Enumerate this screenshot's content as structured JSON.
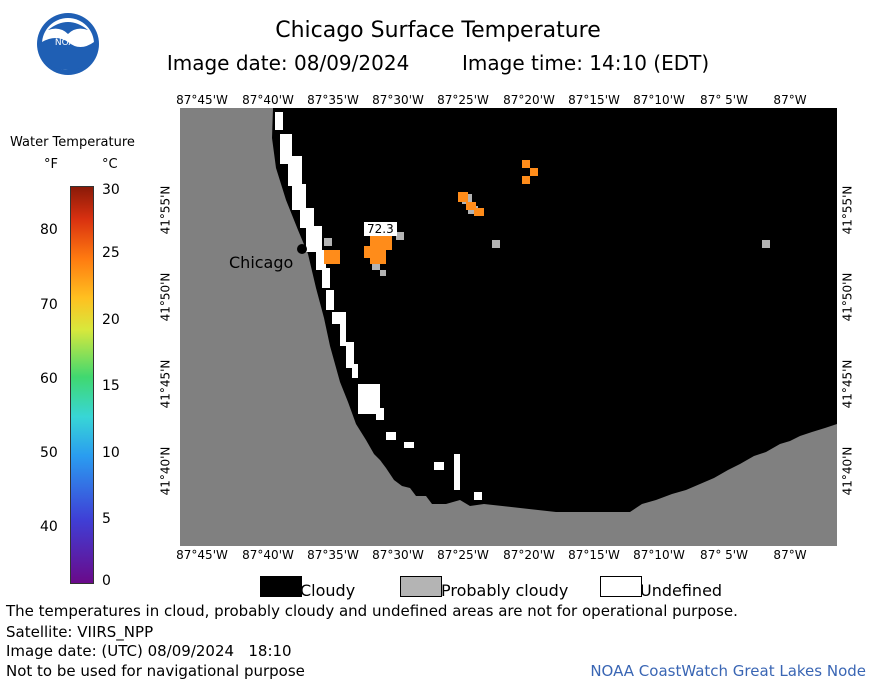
{
  "header": {
    "title": "Chicago Surface Temperature",
    "image_date_label": "Image date: 08/09/2024",
    "image_time_label": "Image time: 14:10 (EDT)",
    "logo_text": "NOAA"
  },
  "colorbar": {
    "title": "Water Temperature",
    "unit_f": "°F",
    "unit_c": "°C",
    "f_ticks": [
      "80",
      "70",
      "60",
      "50",
      "40"
    ],
    "c_ticks": [
      "30",
      "25",
      "20",
      "15",
      "10",
      "5",
      "0"
    ]
  },
  "map": {
    "lon_labels": [
      "87°45'W",
      "87°40'W",
      "87°35'W",
      "87°30'W",
      "87°25'W",
      "87°20'W",
      "87°15'W",
      "87°10'W",
      "87° 5'W",
      "87°W"
    ],
    "lat_labels": [
      "41°55'N",
      "41°50'N",
      "41°45'N",
      "41°40'N"
    ],
    "city_label": "Chicago",
    "temp_reading": "72.3",
    "colors": {
      "land": "#808080",
      "cloud": "#000000",
      "undefined": "#ffffff",
      "probably_cloudy": "#b4b4b4",
      "warm_water": "#ff8c1a"
    }
  },
  "legend": {
    "cloudy": "Cloudy",
    "probably_cloudy": "Probably cloudy",
    "undefined": "Undefined"
  },
  "footer": {
    "note": "The temperatures in cloud, probably cloudy and undefined areas are not for operational purpose.",
    "satellite": "Satellite: VIIRS_NPP",
    "utc_date": "Image date: (UTC) 08/09/2024   18:10",
    "nav_warning": "Not to be used for navigational purpose",
    "credit": "NOAA CoastWatch Great Lakes Node"
  }
}
